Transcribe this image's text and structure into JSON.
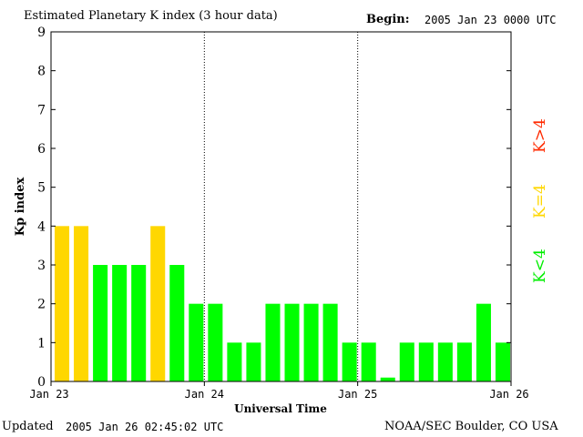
{
  "header": {
    "title": "Estimated Planetary K index (3 hour data)",
    "begin_label": "Begin:",
    "begin_value": "2005 Jan 23 0000 UTC"
  },
  "footer": {
    "updated_label": "Updated",
    "updated_value": "2005 Jan 26 02:45:02 UTC",
    "source": "NOAA/SEC Boulder, CO USA"
  },
  "legend": {
    "low": "K<4",
    "mid": "K=4",
    "high": "K>4"
  },
  "colors": {
    "low": "#00ff00",
    "mid": "#ffd700",
    "high": "#ff2a00"
  },
  "chart_data": {
    "type": "bar",
    "title": "Estimated Planetary K index (3 hour data)",
    "xlabel": "Universal Time",
    "ylabel": "Kp index",
    "ylim": [
      0,
      9
    ],
    "yticks": [
      "0",
      "1",
      "2",
      "3",
      "4",
      "5",
      "6",
      "7",
      "8",
      "9"
    ],
    "xticks": [
      "Jan 23",
      "Jan 24",
      "Jan 25",
      "Jan 26"
    ],
    "bar_interval": "3 hours",
    "values": [
      4,
      4,
      3,
      3,
      3,
      4,
      3,
      2,
      2,
      1,
      1,
      2,
      2,
      2,
      2,
      1,
      1,
      0.1,
      1,
      1,
      1,
      1,
      2,
      1
    ],
    "grid": "dotted vertical lines at day boundaries"
  }
}
